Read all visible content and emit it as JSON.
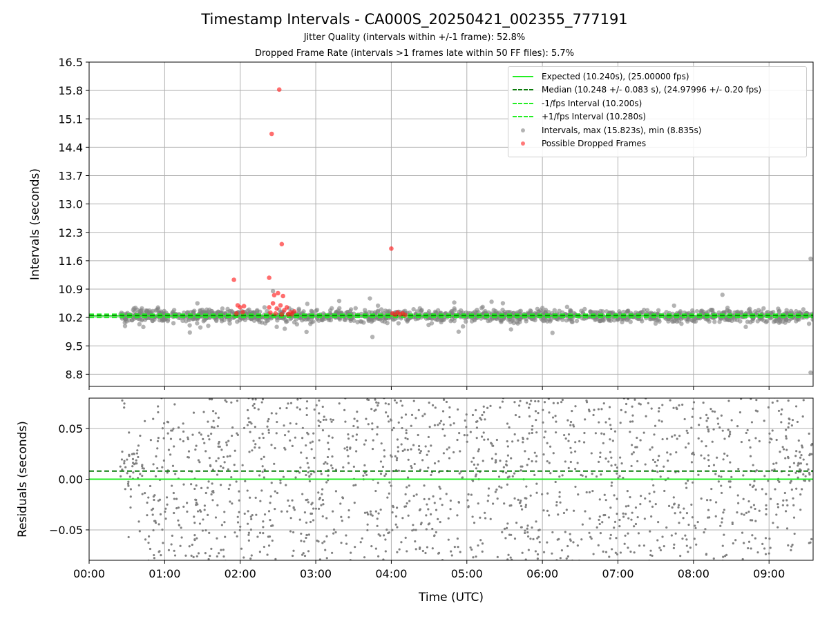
{
  "chart_data": {
    "type": "scatter",
    "title": "Timestamp Intervals - CA000S_20250421_002355_777191",
    "subtitle_1": "Jitter Quality (intervals within +/-1 frame): 52.8%",
    "subtitle_2": "Dropped Frame Rate (intervals >1 frames late within 50 FF files): 5.7%",
    "top_panel": {
      "ylabel": "Intervals (seconds)",
      "ylim": [
        8.5,
        16.5
      ],
      "yticks": [
        "8.8",
        "9.5",
        "10.2",
        "10.9",
        "11.6",
        "12.3",
        "13.0",
        "13.7",
        "14.4",
        "15.1",
        "15.8",
        "16.5"
      ],
      "grid": true,
      "legend_placement": "top-right",
      "reference_lines": [
        {
          "label": "Expected (10.240s), (25.00000 fps)",
          "value": 10.24,
          "style": "solid",
          "color": "#22ee22"
        },
        {
          "label": "Median (10.248 +/- 0.083 s), (24.97996 +/- 0.20 fps)",
          "value": 10.248,
          "style": "dashed",
          "color": "#0a7a0a"
        },
        {
          "label": "-1/fps Interval (10.200s)",
          "value": 10.2,
          "style": "dashed",
          "color": "#22ee22"
        },
        {
          "label": "+1/fps Interval (10.280s)",
          "value": 10.28,
          "style": "dashed",
          "color": "#22ee22"
        }
      ],
      "series": [
        {
          "label": "Intervals, max (15.823s), min (8.835s)",
          "color": "#808080",
          "outliers": [
            [
              "09:33",
              11.65
            ],
            [
              "09:33",
              8.84
            ],
            [
              "02:26",
              10.85
            ],
            [
              "08:23",
              10.76
            ],
            [
              "03:43",
              10.67
            ],
            [
              "01:26",
              10.55
            ],
            [
              "06:08",
              9.82
            ],
            [
              "04:50",
              10.57
            ],
            [
              "03:45",
              9.72
            ],
            [
              "01:20",
              9.83
            ]
          ]
        },
        {
          "label": "Possible Dropped Frames",
          "color": "#ff2020",
          "points": [
            [
              "02:31",
              15.823
            ],
            [
              "02:25",
              14.73
            ],
            [
              "02:33",
              12.01
            ],
            [
              "04:00",
              11.9
            ],
            [
              "02:23",
              11.18
            ],
            [
              "01:55",
              11.13
            ],
            [
              "02:27",
              10.75
            ],
            [
              "02:30",
              10.8
            ],
            [
              "02:34",
              10.73
            ],
            [
              "01:58",
              10.5
            ],
            [
              "02:00",
              10.45
            ],
            [
              "02:03",
              10.48
            ],
            [
              "02:23",
              10.45
            ],
            [
              "02:26",
              10.55
            ],
            [
              "02:29",
              10.42
            ],
            [
              "02:32",
              10.5
            ],
            [
              "02:35",
              10.38
            ],
            [
              "02:37",
              10.45
            ],
            [
              "02:40",
              10.33
            ],
            [
              "02:43",
              10.35
            ],
            [
              "01:57",
              10.3
            ],
            [
              "02:02",
              10.33
            ],
            [
              "02:24",
              10.32
            ],
            [
              "02:28",
              10.3
            ],
            [
              "02:33",
              10.28
            ],
            [
              "02:38",
              10.28
            ],
            [
              "02:41",
              10.28
            ],
            [
              "04:01",
              10.3
            ],
            [
              "04:03",
              10.27
            ],
            [
              "04:05",
              10.32
            ],
            [
              "04:07",
              10.28
            ],
            [
              "04:09",
              10.3
            ],
            [
              "04:11",
              10.26
            ]
          ]
        }
      ]
    },
    "bottom_panel": {
      "ylabel": "Residuals (seconds)",
      "ylim": [
        -0.08,
        0.08
      ],
      "yticks": [
        "−0.05",
        "0.00",
        "0.05"
      ],
      "grid": true,
      "reference_lines": [
        {
          "value": 0.0,
          "style": "solid",
          "color": "#22ee22"
        },
        {
          "value": 0.008,
          "style": "dashed",
          "color": "#0a7a0a"
        }
      ],
      "series": [
        {
          "color": "#808080",
          "description_points": "residuals of each interval from expected"
        }
      ]
    },
    "x": {
      "label": "Time (UTC)",
      "range": [
        "00:00",
        "09:35"
      ],
      "data_start": "00:24",
      "ticks": [
        "00:00",
        "01:00",
        "02:00",
        "03:00",
        "04:00",
        "05:00",
        "06:00",
        "07:00",
        "08:00",
        "09:00"
      ]
    }
  }
}
